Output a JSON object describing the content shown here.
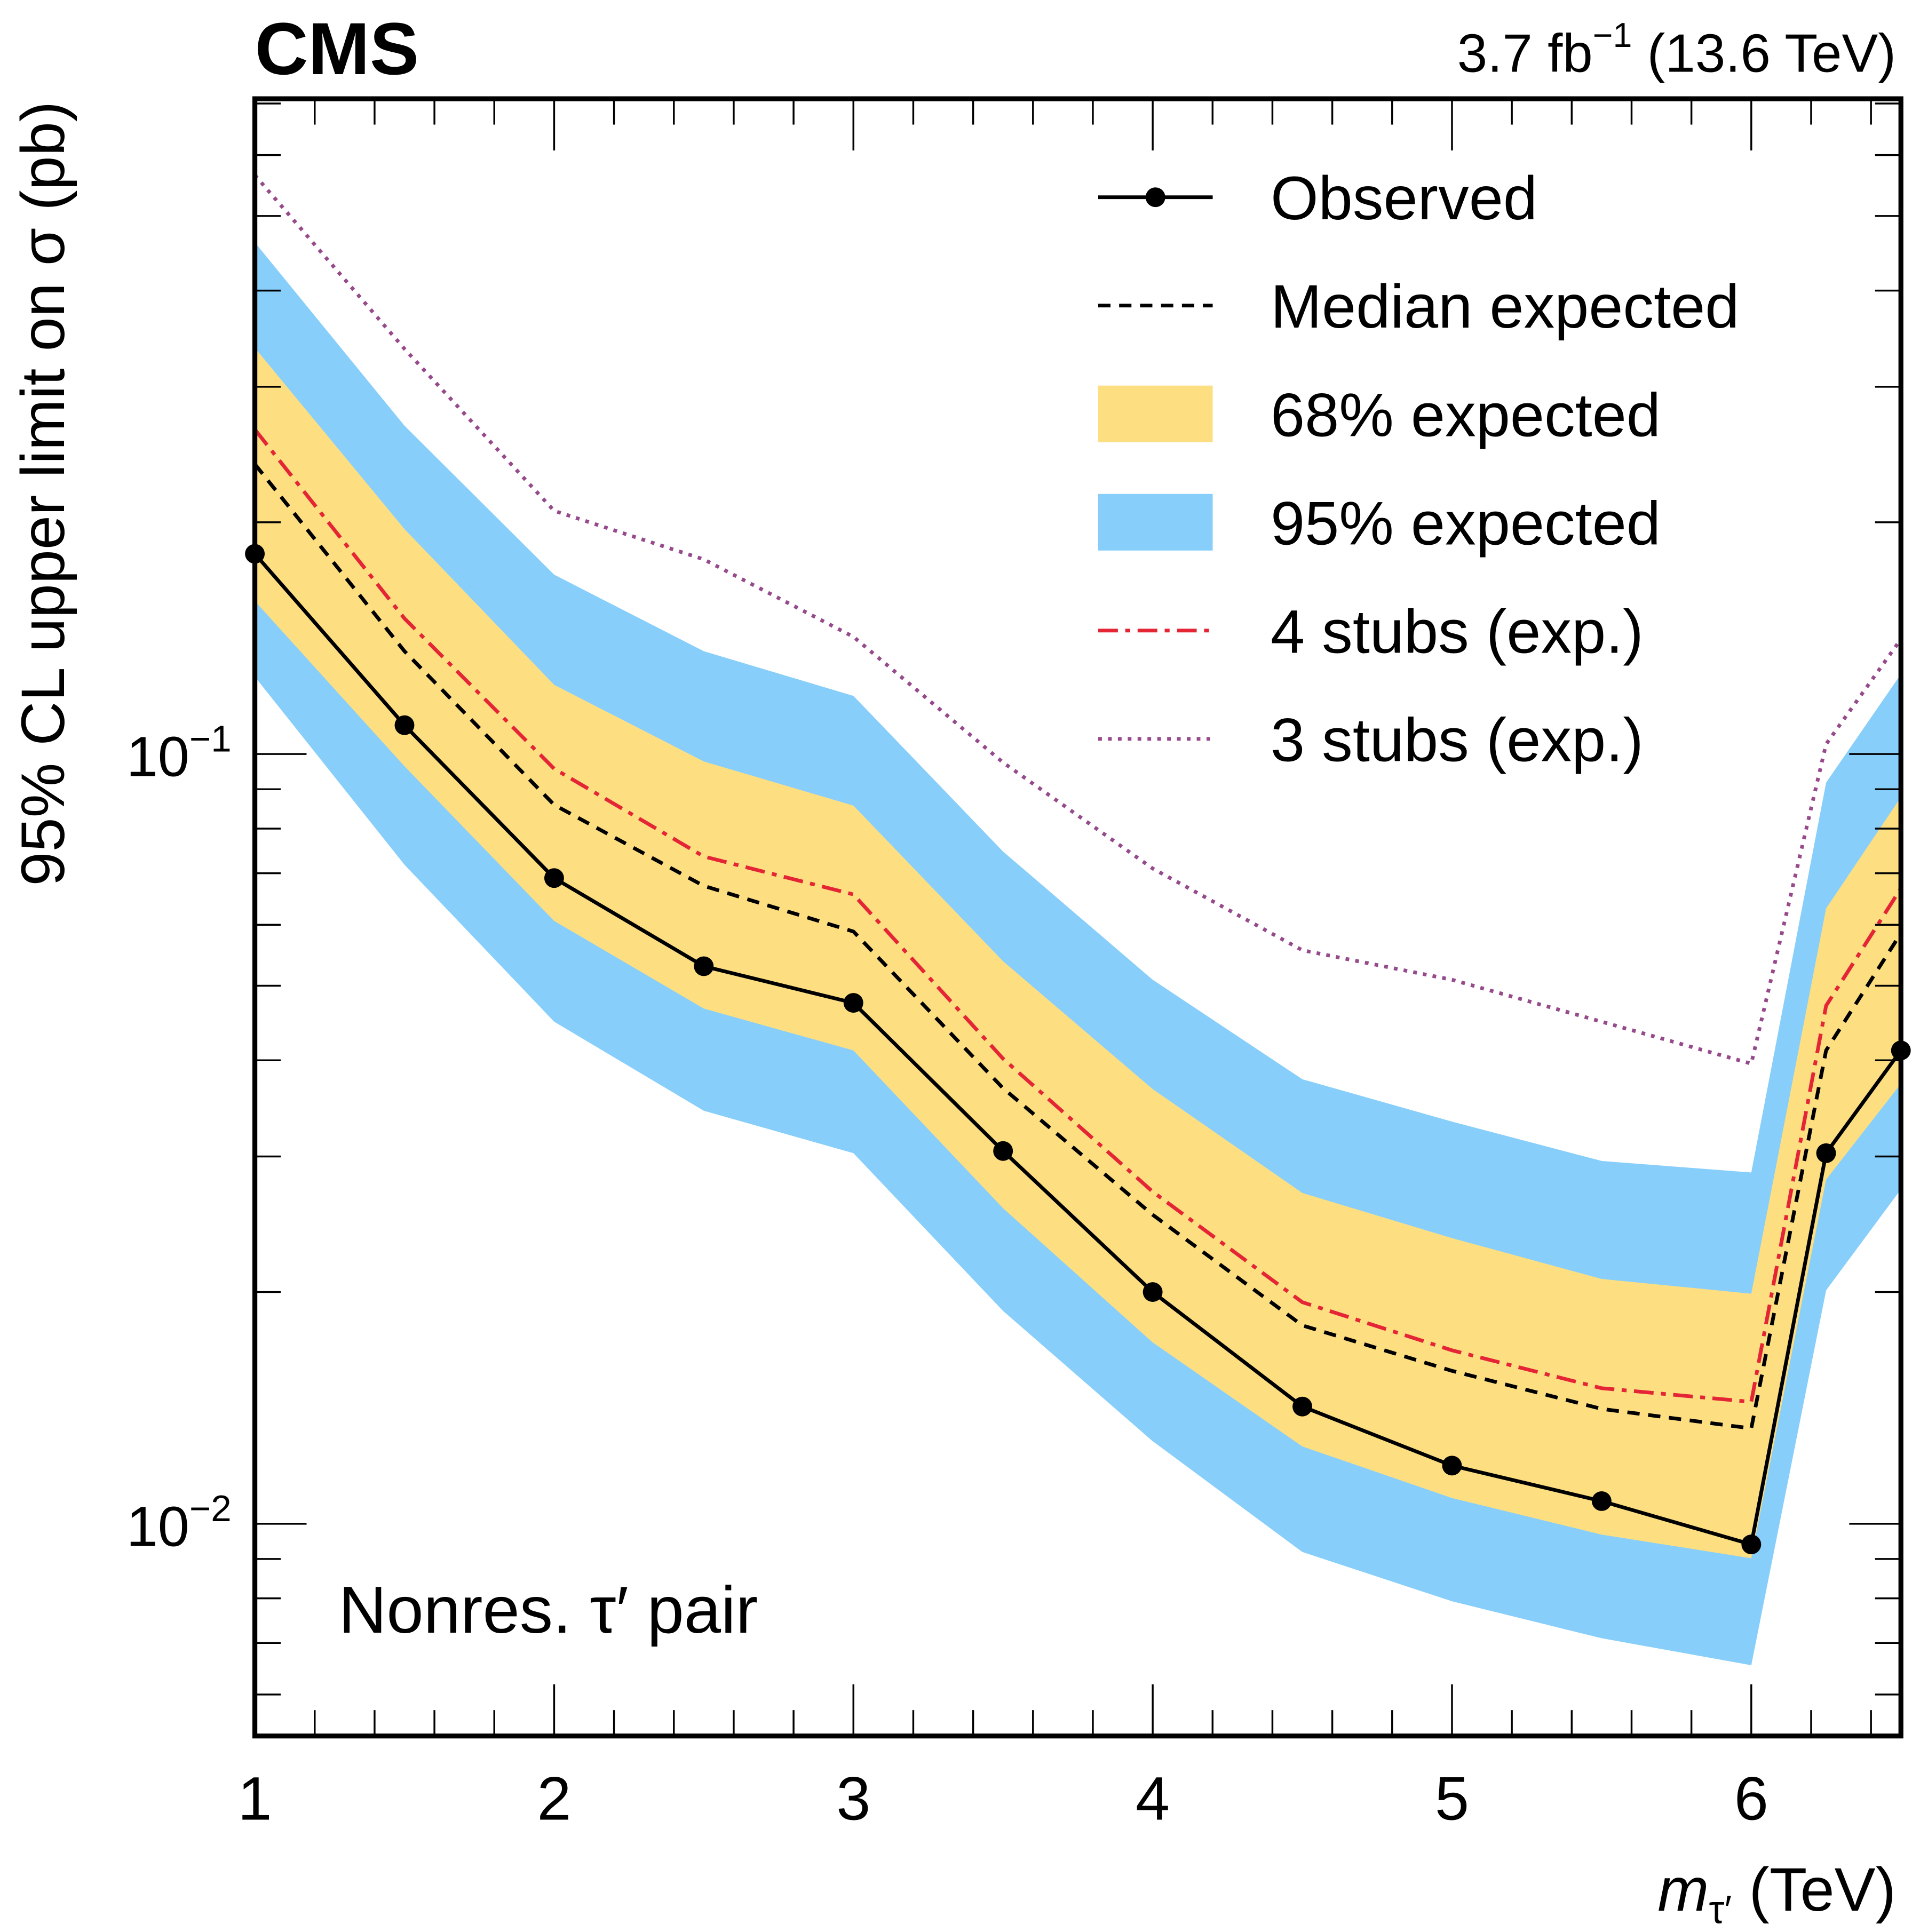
{
  "header": {
    "experiment": "CMS",
    "luminosity_prefix": "3.7 fb",
    "luminosity_exp": "−1",
    "energy": " (13.6 TeV)"
  },
  "annotation": "Nonres. τ′ pair",
  "colors": {
    "observed": "#000000",
    "median": "#000000",
    "band68": "#fddf82",
    "band95": "#87cefa",
    "stubs4": "#e42536",
    "stubs3": "#964a8b"
  },
  "chart_data": {
    "type": "line",
    "title": "",
    "xlabel": "m_τ′ (TeV)",
    "xlabel_parts": {
      "m": "m",
      "sub": "τ′",
      "unit": " (TeV)"
    },
    "ylabel": "95% CL upper limit on σ (pb)",
    "xscale": "linear",
    "yscale": "log",
    "xlim": [
      1,
      6.5
    ],
    "ylim": [
      0.0053,
      0.71
    ],
    "xticks": [
      1,
      2,
      3,
      4,
      5,
      6
    ],
    "xtick_labels": [
      "1",
      "2",
      "3",
      "4",
      "5",
      "6"
    ],
    "yticks": [
      0.1,
      0.01
    ],
    "ytick_labels": [
      {
        "base": "10",
        "exp": "−1"
      },
      {
        "base": "10",
        "exp": "−2"
      }
    ],
    "grid": false,
    "legend_position": "top-right",
    "legend": [
      {
        "key": "observed",
        "label": "Observed"
      },
      {
        "key": "median",
        "label": "Median expected"
      },
      {
        "key": "band68",
        "label": "68% expected"
      },
      {
        "key": "band95",
        "label": "95% expected"
      },
      {
        "key": "stubs4",
        "label": "4 stubs (exp.)"
      },
      {
        "key": "stubs3",
        "label": "3 stubs (exp.)"
      }
    ],
    "x": [
      1.0,
      1.5,
      2.0,
      2.5,
      3.0,
      3.5,
      4.0,
      4.5,
      5.0,
      5.5,
      6.0,
      6.25,
      6.5
    ],
    "series": [
      {
        "name": "Observed",
        "key": "observed",
        "values": [
          0.182,
          0.109,
          0.069,
          0.053,
          0.0475,
          0.0305,
          0.02,
          0.0142,
          0.0119,
          0.0107,
          0.0094,
          0.0303,
          0.0412
        ]
      },
      {
        "name": "Median expected",
        "key": "median",
        "values": [
          0.238,
          0.136,
          0.0859,
          0.0674,
          0.0588,
          0.0368,
          0.0252,
          0.0181,
          0.0158,
          0.0141,
          0.0133,
          0.0412,
          0.0585
        ]
      },
      {
        "name": "4 stubs (exp.)",
        "key": "stubs4",
        "values": [
          0.264,
          0.15,
          0.0957,
          0.0736,
          0.0657,
          0.0402,
          0.027,
          0.0194,
          0.0168,
          0.015,
          0.0144,
          0.0471,
          0.0669
        ]
      },
      {
        "name": "3 stubs (exp.)",
        "key": "stubs3",
        "values": [
          0.565,
          0.336,
          0.207,
          0.179,
          0.142,
          0.0975,
          0.071,
          0.0556,
          0.0509,
          0.0449,
          0.0396,
          0.103,
          0.141
        ]
      }
    ],
    "bands": [
      {
        "name": "95% expected",
        "key": "band95",
        "upper": [
          0.462,
          0.267,
          0.171,
          0.136,
          0.119,
          0.0747,
          0.0509,
          0.0378,
          0.0333,
          0.0296,
          0.0286,
          0.0918,
          0.127
        ],
        "lower": [
          0.126,
          0.0718,
          0.0449,
          0.0344,
          0.0303,
          0.0189,
          0.0128,
          0.00919,
          0.00793,
          0.0071,
          0.00655,
          0.0201,
          0.0272
        ]
      },
      {
        "name": "68% expected",
        "key": "band68",
        "upper": [
          0.337,
          0.196,
          0.123,
          0.0978,
          0.0857,
          0.0538,
          0.0367,
          0.0269,
          0.0235,
          0.0208,
          0.0199,
          0.063,
          0.0879
        ],
        "lower": [
          0.158,
          0.0964,
          0.0607,
          0.0467,
          0.0412,
          0.0257,
          0.0172,
          0.0126,
          0.0108,
          0.00968,
          0.00902,
          0.028,
          0.0373
        ]
      }
    ]
  }
}
